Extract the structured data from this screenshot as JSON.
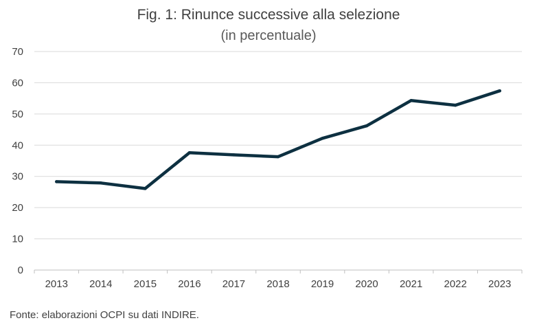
{
  "title": "Fig. 1: Rinunce successive alla selezione",
  "subtitle": "(in percentuale)",
  "source": "Fonte: elaborazioni OCPI su dati INDIRE.",
  "chart_data": {
    "type": "line",
    "title": "Fig. 1: Rinunce successive alla selezione",
    "subtitle": "(in percentuale)",
    "xlabel": "",
    "ylabel": "",
    "categories": [
      "2013",
      "2014",
      "2015",
      "2016",
      "2017",
      "2018",
      "2019",
      "2020",
      "2021",
      "2022",
      "2023"
    ],
    "series": [
      {
        "values": [
          28.3,
          27.9,
          26.1,
          37.6,
          36.9,
          36.3,
          42.2,
          46.2,
          54.3,
          52.8,
          57.4
        ],
        "color": "#0d3041"
      }
    ],
    "ylim": [
      0,
      70
    ],
    "yticks": [
      0,
      10,
      20,
      30,
      40,
      50,
      60,
      70
    ],
    "grid": true,
    "legend": "none"
  },
  "colors": {
    "line": "#0d3041",
    "grid": "#d9d9d9",
    "axis": "#bfbfbf",
    "text": "#404040"
  }
}
